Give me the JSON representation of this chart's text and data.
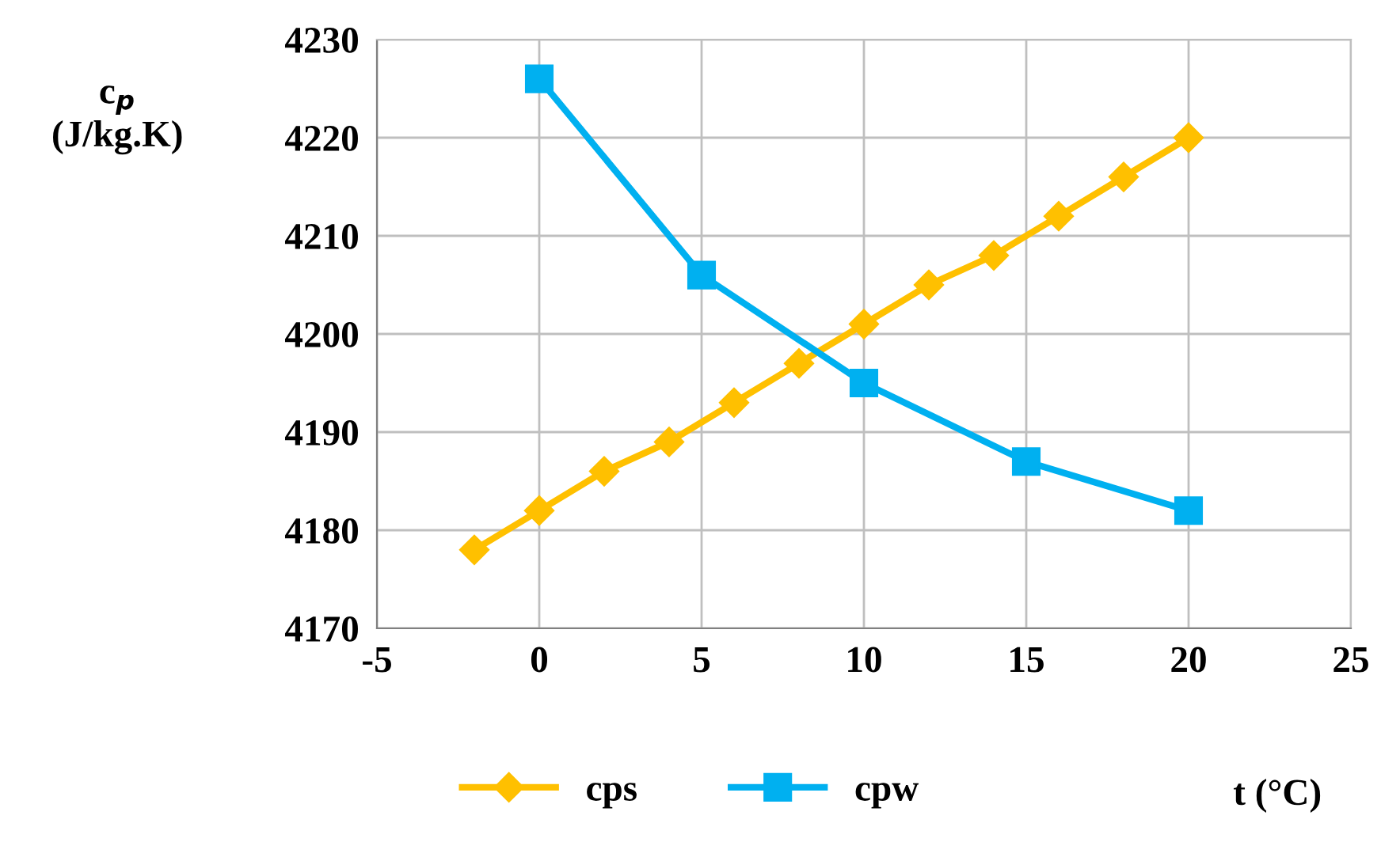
{
  "chart_data": {
    "type": "line",
    "xlabel": "t (°C)",
    "ylabel": "c$_{p}$\n(J/kg.K)",
    "xlim": [
      -5,
      25
    ],
    "xticks": [
      -5,
      0,
      5,
      10,
      15,
      20,
      25
    ],
    "ylim": [
      4170,
      4230
    ],
    "yticks": [
      4170,
      4180,
      4190,
      4200,
      4210,
      4220,
      4230
    ],
    "grid": true,
    "legend": "bottom",
    "line_style": "solid",
    "series": [
      {
        "name": "cps",
        "color": "#ffc000",
        "marker": "diamond",
        "x": [
          -2,
          0,
          2,
          4,
          6,
          8,
          10,
          12,
          14,
          16,
          18,
          20
        ],
        "values": [
          4178,
          4182,
          4186,
          4189,
          4193,
          4197,
          4201,
          4205,
          4208,
          4212,
          4216,
          4220
        ]
      },
      {
        "name": "cpw",
        "color": "#00b0f0",
        "marker": "square",
        "x": [
          0,
          5,
          10,
          15,
          20
        ],
        "values": [
          4226,
          4206,
          4195,
          4187,
          4182
        ]
      }
    ]
  }
}
